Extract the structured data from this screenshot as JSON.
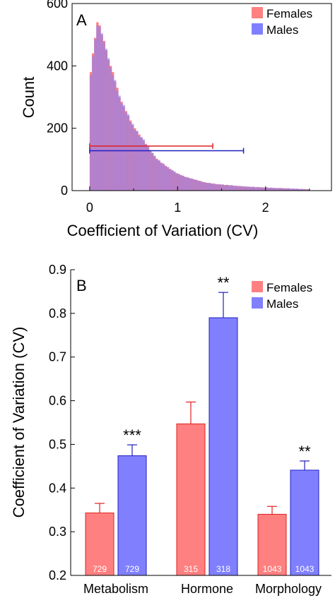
{
  "colors": {
    "female": "#ff8080",
    "female_dark": "#e02020",
    "male": "#8080ff",
    "male_dark": "#2020c0",
    "overlap": "#8c5ad8"
  },
  "chart_data": [
    {
      "panel": "A",
      "type": "bar",
      "subtype": "overlaid-histogram",
      "xlabel": "Coefficient of Variation (CV)",
      "ylabel": "Count",
      "xlim": [
        -0.2,
        2.75
      ],
      "ylim": [
        0,
        600
      ],
      "xticks": [
        0,
        1,
        2
      ],
      "yticks": [
        0,
        200,
        400,
        600
      ],
      "legend": {
        "placement": "top-right",
        "entries": [
          "Females",
          "Males"
        ]
      },
      "grid": false,
      "bin_width": 0.025,
      "x_bin_centers": [
        0.0125,
        0.0375,
        0.0625,
        0.0875,
        0.1125,
        0.1375,
        0.1625,
        0.1875,
        0.2125,
        0.2375,
        0.2625,
        0.2875,
        0.3125,
        0.3375,
        0.3625,
        0.3875,
        0.4125,
        0.4375,
        0.4625,
        0.4875,
        0.5125,
        0.5375,
        0.5625,
        0.5875,
        0.6125,
        0.6375,
        0.6625,
        0.6875,
        0.7125,
        0.7375,
        0.7625,
        0.7875,
        0.8125,
        0.8375,
        0.8625,
        0.8875,
        0.9125,
        0.9375,
        0.9625,
        0.9875,
        1.0125,
        1.0375,
        1.0625,
        1.0875,
        1.1125,
        1.1375,
        1.1625,
        1.1875,
        1.2125,
        1.2375,
        1.2625,
        1.2875,
        1.3125,
        1.3375,
        1.3625,
        1.3875,
        1.4125,
        1.4375,
        1.4625,
        1.4875,
        1.5125,
        1.5375,
        1.5625,
        1.5875,
        1.6125,
        1.6375,
        1.6625,
        1.6875,
        1.7125,
        1.7375,
        1.7625,
        1.7875,
        1.8125,
        1.8375,
        1.8625,
        1.8875,
        1.9125,
        1.9375,
        1.9625,
        1.9875,
        2.0125,
        2.0375,
        2.0625,
        2.0875,
        2.1125,
        2.1375,
        2.1625,
        2.1875,
        2.2125,
        2.2375,
        2.2625,
        2.2875,
        2.3125,
        2.3375,
        2.3625,
        2.3875,
        2.4125,
        2.4375,
        2.4625,
        2.4875
      ],
      "series": [
        {
          "name": "Females",
          "values": [
            380,
            440,
            490,
            540,
            530,
            500,
            480,
            450,
            420,
            400,
            380,
            350,
            330,
            300,
            285,
            270,
            255,
            240,
            225,
            210,
            200,
            190,
            180,
            170,
            160,
            150,
            140,
            130,
            120,
            110,
            102,
            96,
            90,
            85,
            80,
            75,
            70,
            65,
            60,
            56,
            53,
            50,
            47,
            44,
            42,
            40,
            38,
            36,
            34,
            32,
            30,
            28,
            26,
            25,
            24,
            23,
            22,
            21,
            20,
            20,
            19,
            18,
            18,
            17,
            17,
            16,
            15,
            15,
            14,
            14,
            13,
            13,
            12,
            12,
            12,
            11,
            11,
            11,
            10,
            10,
            10,
            9,
            9,
            9,
            8,
            8,
            8,
            8,
            7,
            7,
            7,
            6,
            6,
            6,
            6,
            5,
            5,
            5,
            4,
            4
          ]
        },
        {
          "name": "Males",
          "values": [
            370,
            430,
            485,
            530,
            525,
            505,
            475,
            455,
            425,
            395,
            370,
            355,
            320,
            305,
            280,
            275,
            250,
            245,
            220,
            215,
            195,
            192,
            175,
            172,
            165,
            148,
            145,
            128,
            122,
            112,
            100,
            98,
            88,
            87,
            78,
            76,
            68,
            66,
            62,
            55,
            54,
            49,
            48,
            43,
            43,
            39,
            39,
            35,
            35,
            31,
            31,
            27,
            27,
            24,
            25,
            22,
            23,
            20,
            21,
            19,
            20,
            17,
            19,
            16,
            18,
            15,
            16,
            14,
            15,
            13,
            14,
            12,
            13,
            11,
            13,
            10,
            12,
            10,
            11,
            9,
            11,
            9,
            10,
            8,
            9,
            8,
            9,
            7,
            8,
            7,
            8,
            6,
            7,
            6,
            6,
            5,
            6,
            4,
            5,
            4
          ]
        }
      ],
      "range_bars": [
        {
          "series": "Females",
          "xmin": 0,
          "xmax": 1.4,
          "y": 143
        },
        {
          "series": "Males",
          "xmin": 0,
          "xmax": 1.75,
          "y": 128
        }
      ]
    },
    {
      "panel": "B",
      "type": "bar",
      "xlabel": "",
      "ylabel": "Coefficient of Variation (CV)",
      "ylim": [
        0.2,
        0.9
      ],
      "yticks": [
        "0.2",
        "0.3",
        "0.4",
        "0.5",
        "0.6",
        "0.7",
        "0.8",
        "0.9"
      ],
      "categories": [
        "Metabolism",
        "Hormone",
        "Morphology"
      ],
      "legend": {
        "placement": "top-right",
        "entries": [
          "Females",
          "Males"
        ]
      },
      "grid": false,
      "series": [
        {
          "name": "Females",
          "values": [
            0.343,
            0.547,
            0.34
          ],
          "errors": [
            0.022,
            0.05,
            0.018
          ],
          "n": [
            "729",
            "315",
            "1043"
          ]
        },
        {
          "name": "Males",
          "values": [
            0.474,
            0.79,
            0.441
          ],
          "errors": [
            0.025,
            0.058,
            0.021
          ],
          "n": [
            "729",
            "318",
            "1043"
          ]
        }
      ],
      "significance": [
        "***",
        "**",
        "**"
      ]
    }
  ]
}
